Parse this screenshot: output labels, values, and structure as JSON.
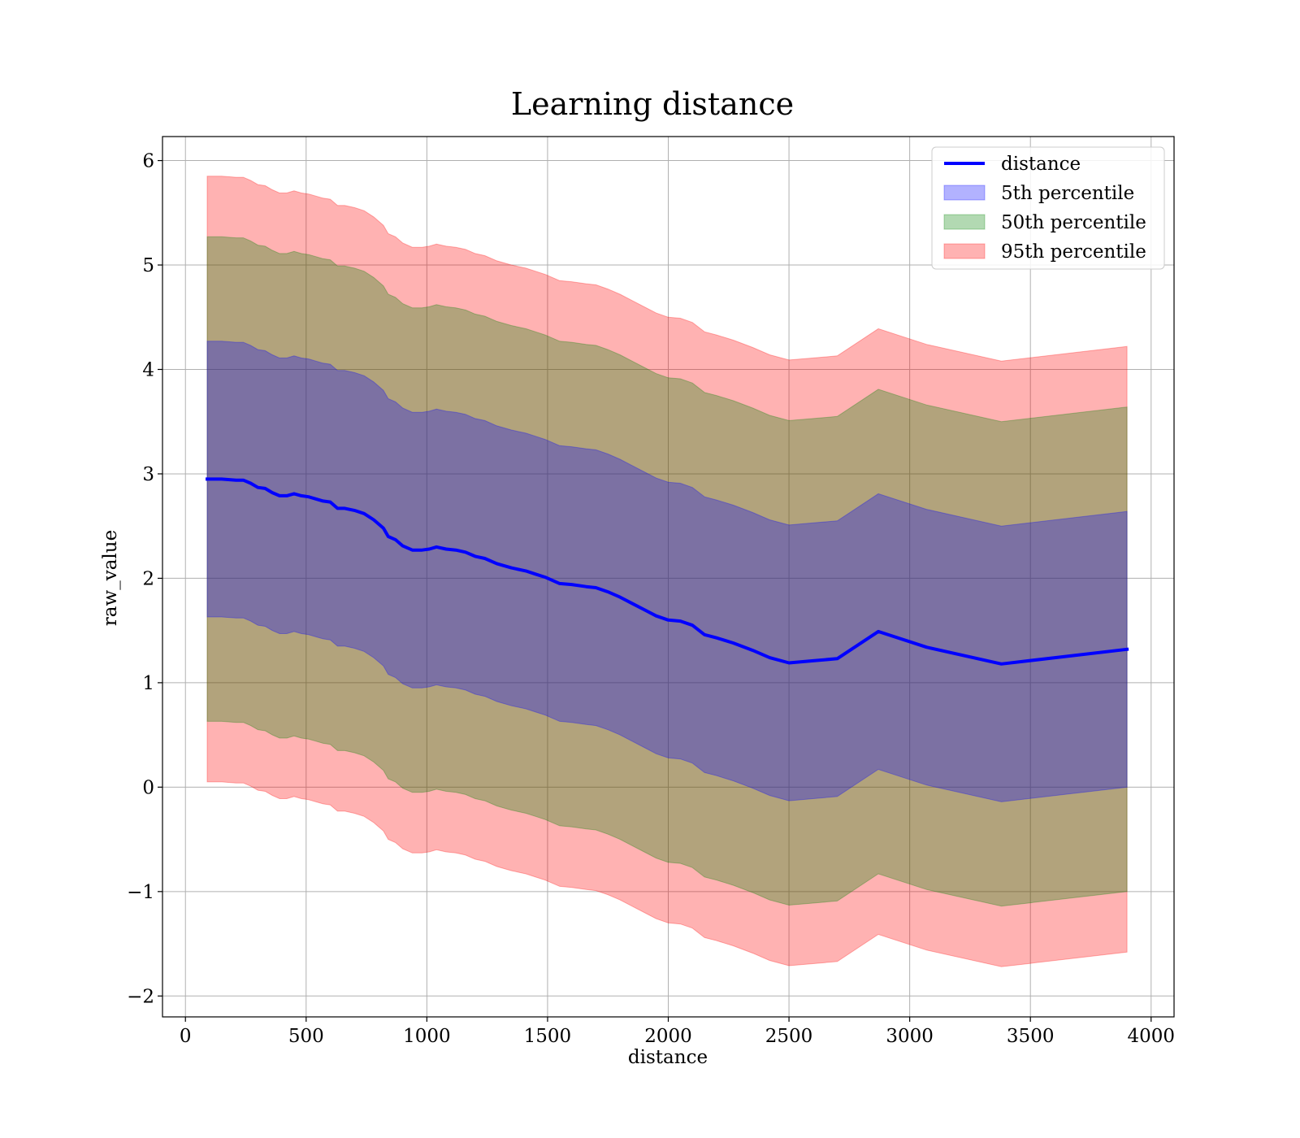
{
  "chart_data": {
    "type": "line",
    "title": "Learning distance",
    "xlabel": "distance",
    "ylabel": "raw_value",
    "xlim": [
      -95,
      4095
    ],
    "ylim": [
      -2.2,
      6.23
    ],
    "xticks": [
      0,
      500,
      1000,
      1500,
      2000,
      2500,
      3000,
      3500,
      4000
    ],
    "xtick_labels": [
      "0",
      "500",
      "1000",
      "1500",
      "2000",
      "2500",
      "3000",
      "3500",
      "4000"
    ],
    "yticks": [
      -2,
      -1,
      0,
      1,
      2,
      3,
      4,
      5,
      6
    ],
    "ytick_labels": [
      "−2",
      "−1",
      "0",
      "1",
      "2",
      "3",
      "4",
      "5",
      "6"
    ],
    "grid": true,
    "legend_position": "top-right",
    "x": [
      90,
      150,
      210,
      240,
      270,
      300,
      330,
      360,
      390,
      420,
      450,
      480,
      510,
      540,
      570,
      600,
      630,
      660,
      700,
      740,
      780,
      820,
      840,
      870,
      900,
      940,
      980,
      1010,
      1040,
      1080,
      1120,
      1160,
      1200,
      1240,
      1290,
      1350,
      1410,
      1450,
      1490,
      1550,
      1600,
      1660,
      1700,
      1750,
      1800,
      1850,
      1900,
      1950,
      2000,
      2050,
      2100,
      2150,
      2200,
      2270,
      2350,
      2420,
      2500,
      2600,
      2700,
      2870,
      3070,
      3380,
      3900
    ],
    "series": [
      {
        "name": "distance",
        "color": "#0000ff",
        "values": [
          2.95,
          2.95,
          2.94,
          2.94,
          2.91,
          2.87,
          2.86,
          2.82,
          2.79,
          2.79,
          2.81,
          2.79,
          2.78,
          2.76,
          2.74,
          2.73,
          2.67,
          2.67,
          2.65,
          2.62,
          2.56,
          2.48,
          2.4,
          2.37,
          2.31,
          2.27,
          2.27,
          2.28,
          2.3,
          2.28,
          2.27,
          2.25,
          2.21,
          2.19,
          2.14,
          2.1,
          2.07,
          2.04,
          2.01,
          1.95,
          1.94,
          1.92,
          1.91,
          1.87,
          1.82,
          1.76,
          1.7,
          1.64,
          1.6,
          1.59,
          1.55,
          1.46,
          1.43,
          1.38,
          1.31,
          1.24,
          1.19,
          1.21,
          1.23,
          1.49,
          1.34,
          1.18,
          1.32
        ]
      }
    ],
    "bands": [
      {
        "name": "5th percentile",
        "color": "#0000ff",
        "alpha": 0.3,
        "half_width": 1.32
      },
      {
        "name": "50th percentile",
        "color": "#008000",
        "alpha": 0.3,
        "half_width": 2.32
      },
      {
        "name": "95th percentile",
        "color": "#ff0000",
        "alpha": 0.3,
        "half_width": 2.9
      }
    ]
  }
}
